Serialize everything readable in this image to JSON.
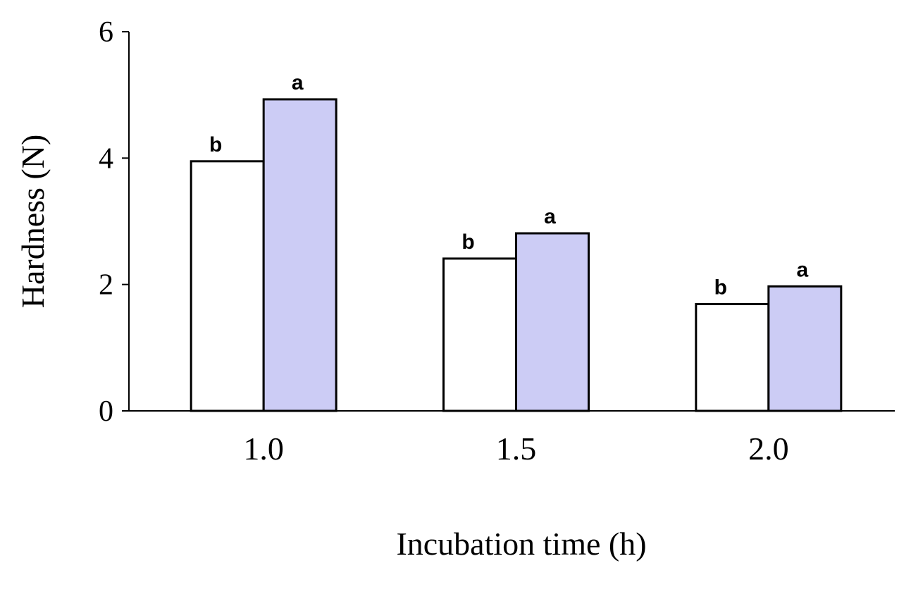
{
  "chart_data": {
    "type": "bar",
    "x_label": "Incubation time (h)",
    "y_label": "Hardness (N)",
    "categories": [
      "1.0",
      "1.5",
      "2.0"
    ],
    "series": [
      {
        "color": "#ffffff",
        "values": [
          3.95,
          2.41,
          1.69
        ],
        "labels": [
          "b",
          "b",
          "b"
        ]
      },
      {
        "color": "#ccccf5",
        "values": [
          4.93,
          2.81,
          1.97
        ],
        "labels": [
          "a",
          "a",
          "a"
        ]
      }
    ],
    "ylim": [
      0,
      6
    ],
    "yticks": [
      0,
      2,
      4,
      6
    ],
    "grid": false
  }
}
